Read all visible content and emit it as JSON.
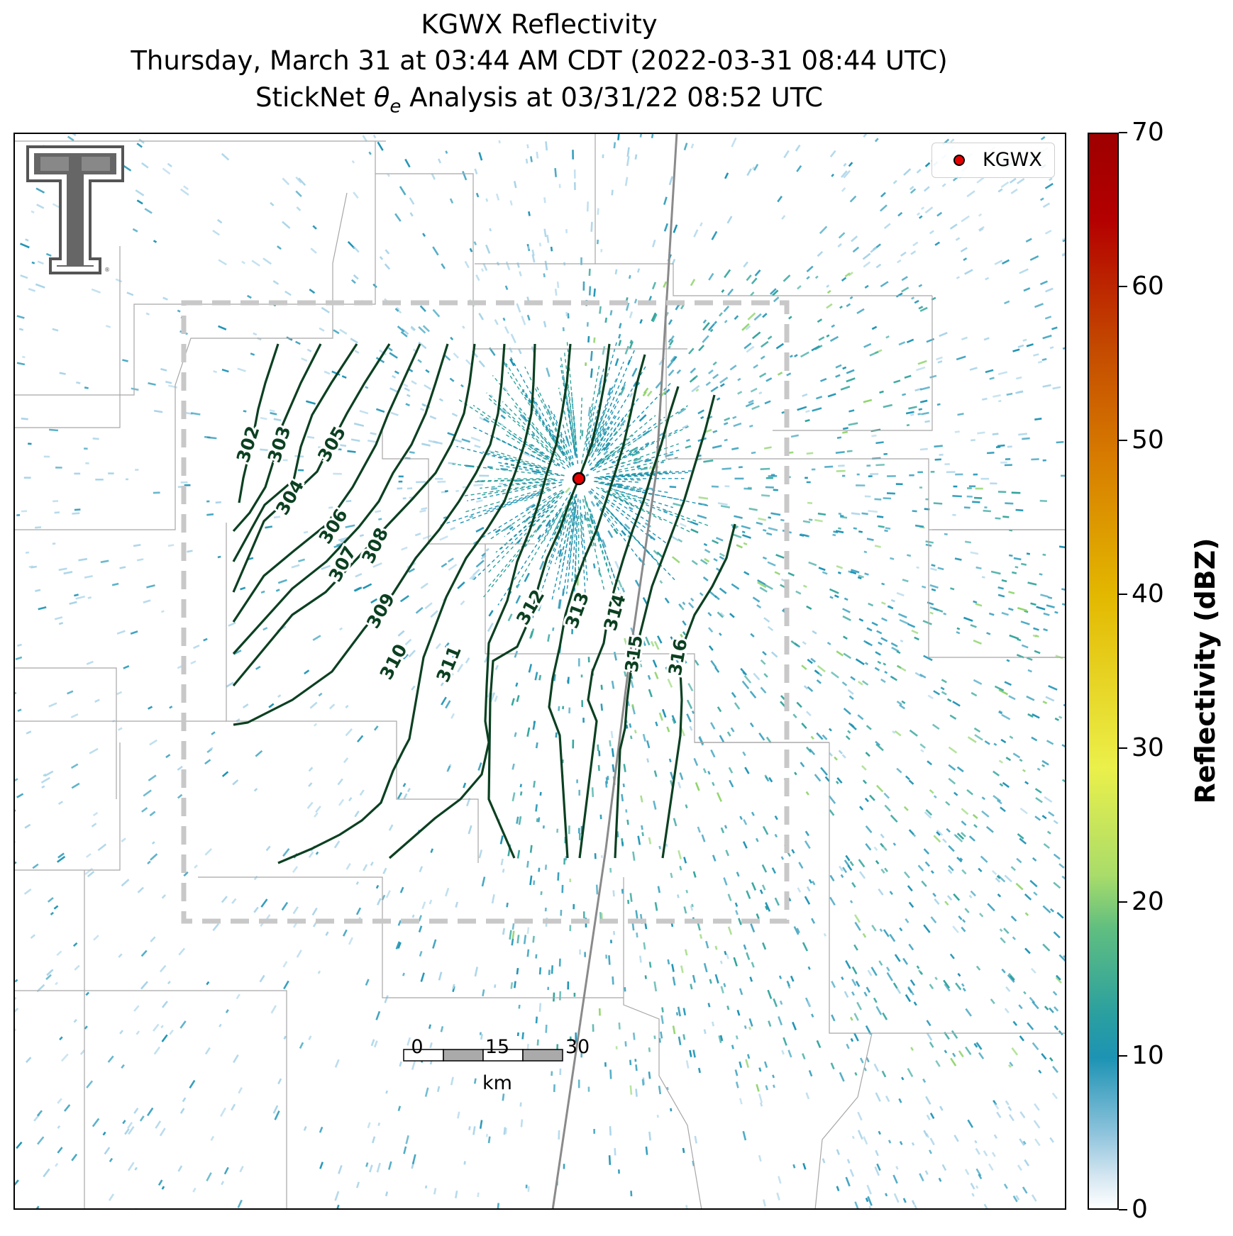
{
  "title": {
    "line1": "KGWX Reflectivity",
    "line2": "Thursday, March 31 at 03:44 AM CDT (2022-03-31 08:44 UTC)",
    "line3_prefix": "StickNet ",
    "line3_symbol": "θ",
    "line3_subscript": "e",
    "line3_suffix": " Analysis at 03/31/22 08:52 UTC"
  },
  "legend": {
    "label": "KGWX",
    "marker_color": "#e50000"
  },
  "colorbar": {
    "label": "Reflectivity (dBZ)",
    "min": 0,
    "max": 70,
    "ticks": [
      "0",
      "10",
      "20",
      "30",
      "40",
      "50",
      "60",
      "70"
    ]
  },
  "contours": {
    "color": "#0b4021",
    "labels": [
      "302",
      "303",
      "304",
      "305",
      "306",
      "307",
      "308",
      "309",
      "310",
      "311",
      "312",
      "313",
      "314",
      "315",
      "316"
    ]
  },
  "scale_bar": {
    "labels": [
      "0",
      "15",
      "30"
    ],
    "unit": "km"
  },
  "colors": {
    "echo_light": "#a8d3e8",
    "echo_mid": "#1d93b4",
    "echo_strong": "#2fa39a",
    "echo_green": "#8fd46c",
    "analysis_box": "#c8c8c8",
    "highway": "#8a8a8a",
    "county_lines": "#a6a6a6"
  }
}
